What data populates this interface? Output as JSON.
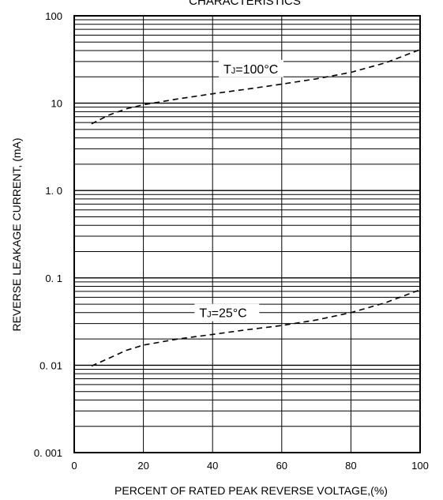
{
  "chart_data": {
    "type": "line",
    "title": "CHARACTERISTICS",
    "xlabel": "PERCENT OF RATED PEAK REVERSE VOLTAGE,(%)",
    "ylabel": "REVERSE LEAKAGE CURRENT, (mA)",
    "xlim": [
      0,
      100
    ],
    "ylim": [
      0.001,
      100
    ],
    "yscale": "log",
    "grid": true,
    "x_ticks": [
      "0",
      "20",
      "40",
      "60",
      "80",
      "100"
    ],
    "y_ticks": [
      "0. 001",
      "0. 01",
      "0. 1",
      "1. 0",
      "10",
      "100"
    ],
    "series": [
      {
        "name": "TJ=100°C",
        "label_main": "T",
        "label_sub": "J",
        "label_rest": "=100°C",
        "label_x": 50,
        "x": [
          5,
          10,
          15,
          20,
          30,
          40,
          50,
          60,
          70,
          80,
          90,
          100
        ],
        "y": [
          5.8,
          7.3,
          8.6,
          9.6,
          11.2,
          12.8,
          14.5,
          16.5,
          19.0,
          22.5,
          29.0,
          41.0
        ]
      },
      {
        "name": "TJ=25°C",
        "label_main": "T",
        "label_sub": "J",
        "label_rest": "=25°C",
        "label_x": 43,
        "x": [
          5,
          10,
          15,
          20,
          30,
          40,
          50,
          60,
          70,
          80,
          90,
          100
        ],
        "y": [
          0.0098,
          0.012,
          0.0148,
          0.017,
          0.02,
          0.0225,
          0.0255,
          0.0285,
          0.033,
          0.04,
          0.052,
          0.073
        ]
      }
    ]
  }
}
